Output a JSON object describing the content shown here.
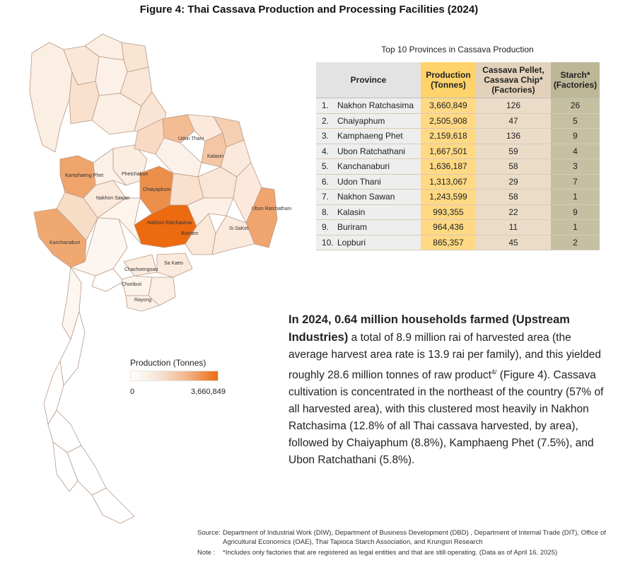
{
  "title": "Figure 4: Thai Cassava Production and Processing Facilities (2024)",
  "map": {
    "labels": {
      "udon_thani": "Udon Thani",
      "kalasin": "Kalasin",
      "kamphaeng_phet": "Kamphaeng Phet",
      "phetchabun": "Phetchabun",
      "chaiyaphum": "Chaiyaphum",
      "nakhon_sawan": "Nakhon Sawan",
      "ubon_ratchathani": "Ubon Ratchathani",
      "kanchanaburi": "Kanchanaburi",
      "nakhon_ratchasima": "Nakhon Ratchasima",
      "buriram": "Buriram",
      "si_saket": "Si SaKet",
      "chachoengsao": "Chachoengsao",
      "sa_kaeo": "Sa Kaeo",
      "chonburi": "Chonburi",
      "rayong": "Rayong"
    },
    "colors": {
      "low": "#fdf1e7",
      "mid": "#f3c39c",
      "high": "#ec6a10"
    }
  },
  "legend": {
    "title": "Production (Tonnes)",
    "min": "0",
    "max": "3,660,849"
  },
  "table": {
    "title": "Top 10 Provinces in Cassava Production",
    "headers": {
      "province": "Province",
      "production": "Production (Tonnes)",
      "pellet": "Cassava Pellet, Cassava Chip* (Factories)",
      "starch": "Starch* (Factories)"
    },
    "rows": [
      {
        "rank": "1.",
        "province": "Nakhon Ratchasima",
        "production": "3,660,849",
        "pellet": "126",
        "starch": "26"
      },
      {
        "rank": "2.",
        "province": "Chaiyaphum",
        "production": "2,505,908",
        "pellet": "47",
        "starch": "5"
      },
      {
        "rank": "3.",
        "province": "Kamphaeng Phet",
        "production": "2,159,618",
        "pellet": "136",
        "starch": "9"
      },
      {
        "rank": "4.",
        "province": "Ubon Ratchathani",
        "production": "1,667,501",
        "pellet": "59",
        "starch": "4"
      },
      {
        "rank": "5.",
        "province": "Kanchanaburi",
        "production": "1,636,187",
        "pellet": "58",
        "starch": "3"
      },
      {
        "rank": "6.",
        "province": "Udon Thani",
        "production": "1,313,067",
        "pellet": "29",
        "starch": "7"
      },
      {
        "rank": "7.",
        "province": "Nakhon Sawan",
        "production": "1,243,599",
        "pellet": "58",
        "starch": "1"
      },
      {
        "rank": "8.",
        "province": "Kalasin",
        "production": "993,355",
        "pellet": "22",
        "starch": "9"
      },
      {
        "rank": "9.",
        "province": "Buriram",
        "production": "964,436",
        "pellet": "11",
        "starch": "1"
      },
      {
        "rank": "10.",
        "province": "Lopburi",
        "production": "865,357",
        "pellet": "45",
        "starch": "2"
      }
    ]
  },
  "paragraph": {
    "bold": "In 2024, 0.64 million households farmed (Upstream Industries)",
    "text1": " a total of 8.9 million rai of harvested area (the average harvest area rate is 13.9 rai per family), and this yielded roughly 28.6 million tonnes of raw product",
    "sup": "4/",
    "text2": " (Figure 4). Cassava cultivation is concentrated in the northeast of the country (57% of all harvested area), with this clustered most heavily in Nakhon Ratchasima (12.8% of all Thai cassava harvested, by area), followed by Chaiyaphum (8.8%), Kamphaeng Phet (7.5%), and Ubon Ratchathani (5.8%)."
  },
  "source": {
    "source_label": "Source:",
    "source_text": "Department of Industrial Work (DIW), Department of Business Development (DBD) , Department of Internal Trade (DIT), Office of Agricultural Economics (OAE), Thai Tapioca Starch Association, and Krungsri Research",
    "note_label": "Note :",
    "note_text": "*Includes only factories that are registered as legal entities and that are still operating. (Data as of April 16, 2025)"
  }
}
